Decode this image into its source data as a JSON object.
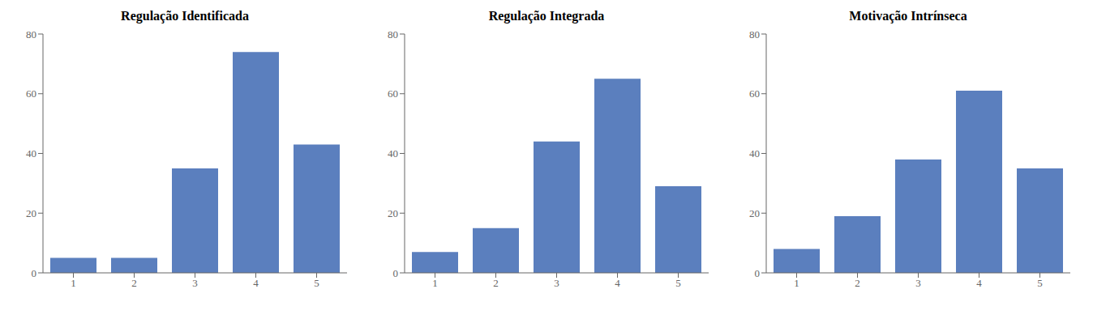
{
  "chart_data": [
    {
      "type": "bar",
      "title": "Regulação Identificada",
      "categories": [
        1,
        2,
        3,
        4,
        5
      ],
      "values": [
        5,
        5,
        35,
        74,
        43
      ],
      "color": "#5b7fbe",
      "ylim": [
        0,
        80
      ],
      "yticks": [
        0,
        20,
        40,
        60,
        80
      ],
      "grid": false
    },
    {
      "type": "bar",
      "title": "Regulação Integrada",
      "categories": [
        1,
        2,
        3,
        4,
        5
      ],
      "values": [
        7,
        15,
        44,
        65,
        29
      ],
      "color": "#5b7fbe",
      "ylim": [
        0,
        80
      ],
      "yticks": [
        0,
        20,
        40,
        60,
        80
      ],
      "grid": false
    },
    {
      "type": "bar",
      "title": "Motivação Intrínseca",
      "categories": [
        1,
        2,
        3,
        4,
        5
      ],
      "values": [
        8,
        19,
        38,
        61,
        35
      ],
      "color": "#5b7fbe",
      "ylim": [
        0,
        80
      ],
      "yticks": [
        0,
        20,
        40,
        60,
        80
      ],
      "grid": false
    }
  ]
}
